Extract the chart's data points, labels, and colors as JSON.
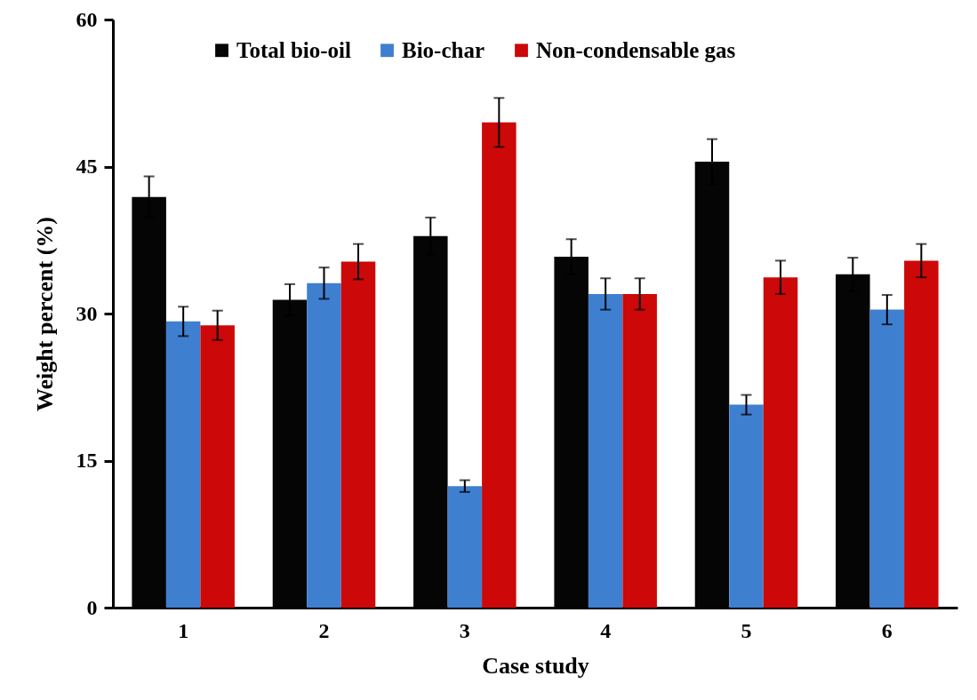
{
  "chart_data": {
    "type": "bar",
    "xlabel": "Case study",
    "ylabel": "Weight percent  (%)",
    "categories": [
      "1",
      "2",
      "3",
      "4",
      "5",
      "6"
    ],
    "ylim": [
      0,
      60
    ],
    "yticks": [
      0,
      15,
      30,
      45,
      60
    ],
    "grid": false,
    "legend": "top",
    "series": [
      {
        "name": "Total bio-oil",
        "color": "#050505",
        "values": [
          41.9,
          31.4,
          37.9,
          35.8,
          45.5,
          34.0
        ],
        "errors": [
          2.1,
          1.6,
          1.9,
          1.8,
          2.3,
          1.7
        ]
      },
      {
        "name": "Bio-char",
        "color": "#3f7fd0",
        "values": [
          29.2,
          33.1,
          12.4,
          32.0,
          20.7,
          30.4
        ],
        "errors": [
          1.5,
          1.6,
          0.6,
          1.6,
          1.0,
          1.5
        ]
      },
      {
        "name": "Non-condensable gas",
        "color": "#cc0808",
        "values": [
          28.8,
          35.3,
          49.5,
          32.0,
          33.7,
          35.4
        ],
        "errors": [
          1.5,
          1.8,
          2.5,
          1.6,
          1.7,
          1.7
        ]
      }
    ]
  }
}
